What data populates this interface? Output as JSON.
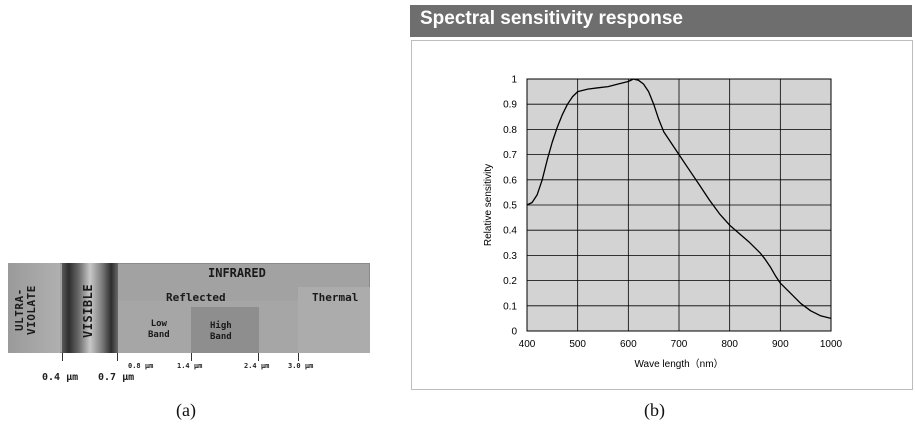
{
  "panel_a": {
    "infrared_label": "INFRARED",
    "ultraviolet_label": "ULTRA-\nVIOLATE",
    "visible_label": "VISIBLE",
    "reflected_label": "Reflected",
    "thermal_label": "Thermal",
    "low_band_label": "Low\nBand",
    "high_band_label": "High\nBand",
    "wavelength_labels": [
      "0.4 µm",
      "0.7 µm",
      "0.8 µm",
      "1.4 µm",
      "2.4 µm",
      "3.0 µm"
    ],
    "caption": "(a)"
  },
  "panel_b": {
    "header_title": "Spectral sensitivity response",
    "caption": "(b)"
  },
  "chart_data": {
    "type": "line",
    "title": "Spectral sensitivity response",
    "xlabel": "Wave length（nm）",
    "ylabel": "Relative sensitivity",
    "xlim": [
      400,
      1000
    ],
    "ylim": [
      0,
      1
    ],
    "xticks": [
      400,
      500,
      600,
      700,
      800,
      900,
      1000
    ],
    "xtick_labels": [
      "400",
      "500",
      "600",
      "700",
      "800",
      "900",
      "1000"
    ],
    "yticks": [
      0,
      0.1,
      0.2,
      0.3,
      0.4,
      0.5,
      0.6,
      0.7,
      0.8,
      0.9,
      1
    ],
    "ytick_labels": [
      "0",
      "0.1",
      "0.2",
      "0.3",
      "0.4",
      "0.5",
      "0.6",
      "0.7",
      "0.8",
      "0.9",
      "1"
    ],
    "grid": true,
    "plot_background": "#d3d3d3",
    "series": [
      {
        "x": [
          400,
          410,
          420,
          430,
          440,
          450,
          460,
          470,
          480,
          490,
          500,
          520,
          540,
          560,
          580,
          600,
          610,
          620,
          630,
          640,
          650,
          660,
          670,
          680,
          690,
          700,
          720,
          740,
          760,
          780,
          800,
          820,
          840,
          860,
          870,
          880,
          890,
          900,
          920,
          940,
          960,
          980,
          1000
        ],
        "y": [
          0.5,
          0.51,
          0.54,
          0.6,
          0.68,
          0.75,
          0.81,
          0.86,
          0.9,
          0.93,
          0.95,
          0.96,
          0.965,
          0.97,
          0.98,
          0.99,
          1.0,
          0.995,
          0.98,
          0.95,
          0.9,
          0.84,
          0.79,
          0.76,
          0.73,
          0.7,
          0.64,
          0.58,
          0.52,
          0.465,
          0.42,
          0.385,
          0.35,
          0.31,
          0.285,
          0.255,
          0.22,
          0.19,
          0.15,
          0.11,
          0.08,
          0.06,
          0.05
        ]
      }
    ],
    "line_color": "#000000"
  }
}
